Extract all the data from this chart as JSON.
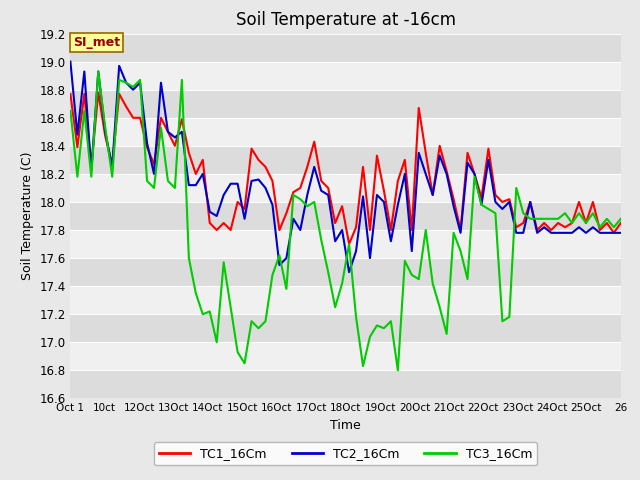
{
  "title": "Soil Temperature at -16cm",
  "xlabel": "Time",
  "ylabel": "Soil Temperature (C)",
  "fig_bg_color": "#e8e8e8",
  "plot_bg_color": "#e8e8e8",
  "ylim": [
    16.6,
    19.2
  ],
  "yticks": [
    16.6,
    16.8,
    17.0,
    17.2,
    17.4,
    17.6,
    17.8,
    18.0,
    18.2,
    18.4,
    18.6,
    18.8,
    19.0,
    19.2
  ],
  "xtick_labels": [
    "Oct 1",
    "10ct",
    "12Oct",
    "13Oct",
    "14Oct",
    "15Oct",
    "16Oct",
    "17Oct",
    "18Oct",
    "19Oct",
    "20Oct",
    "21Oct",
    "22Oct",
    "23Oct",
    "24Oct",
    "25Oct",
    "26"
  ],
  "legend_labels": [
    "TC1_16Cm",
    "TC2_16Cm",
    "TC3_16Cm"
  ],
  "legend_colors": [
    "#ff0000",
    "#0000cc",
    "#00cc00"
  ],
  "annotation_text": "SI_met",
  "annotation_bg": "#ffff99",
  "annotation_border": "#996600",
  "annotation_text_color": "#990000",
  "line_width": 1.5,
  "band_colors": [
    "#dcdcdc",
    "#f0f0f0"
  ],
  "series": {
    "TC1": [
      18.77,
      18.39,
      18.77,
      18.25,
      18.78,
      18.47,
      18.26,
      18.77,
      18.68,
      18.6,
      18.6,
      18.39,
      18.27,
      18.6,
      18.5,
      18.4,
      18.59,
      18.35,
      18.2,
      18.3,
      17.85,
      17.8,
      17.85,
      17.8,
      18.0,
      17.95,
      18.38,
      18.3,
      18.25,
      18.15,
      17.8,
      17.92,
      18.07,
      18.1,
      18.25,
      18.43,
      18.15,
      18.1,
      17.85,
      17.97,
      17.7,
      17.82,
      18.25,
      17.8,
      18.33,
      18.08,
      17.8,
      18.15,
      18.3,
      17.8,
      18.67,
      18.35,
      18.05,
      18.4,
      18.22,
      18.02,
      17.8,
      18.35,
      18.2,
      18.03,
      18.38,
      18.05,
      18.0,
      18.02,
      17.82,
      17.85,
      18.0,
      17.8,
      17.85,
      17.8,
      17.85,
      17.82,
      17.85,
      18.0,
      17.85,
      18.0,
      17.8,
      17.85,
      17.78,
      17.85
    ],
    "TC2": [
      19.0,
      18.48,
      18.93,
      18.22,
      18.93,
      18.5,
      18.25,
      18.97,
      18.85,
      18.8,
      18.85,
      18.42,
      18.2,
      18.85,
      18.5,
      18.46,
      18.5,
      18.12,
      18.12,
      18.2,
      17.93,
      17.9,
      18.05,
      18.13,
      18.13,
      17.88,
      18.15,
      18.16,
      18.1,
      17.98,
      17.55,
      17.6,
      17.88,
      17.8,
      18.05,
      18.25,
      18.08,
      18.05,
      17.72,
      17.8,
      17.5,
      17.65,
      18.04,
      17.6,
      18.05,
      18.0,
      17.72,
      17.98,
      18.2,
      17.65,
      18.35,
      18.2,
      18.05,
      18.33,
      18.2,
      17.97,
      17.78,
      18.28,
      18.2,
      17.98,
      18.3,
      18.0,
      17.95,
      18.0,
      17.78,
      17.78,
      18.0,
      17.78,
      17.82,
      17.78,
      17.78,
      17.78,
      17.78,
      17.82,
      17.78,
      17.82,
      17.78,
      17.78,
      17.78,
      17.78
    ],
    "TC3": [
      18.65,
      18.18,
      18.65,
      18.18,
      18.93,
      18.53,
      18.18,
      18.87,
      18.85,
      18.82,
      18.87,
      18.15,
      18.1,
      18.53,
      18.15,
      18.1,
      18.87,
      17.6,
      17.35,
      17.2,
      17.22,
      17.0,
      17.57,
      17.25,
      16.93,
      16.85,
      17.15,
      17.1,
      17.15,
      17.48,
      17.62,
      17.38,
      18.05,
      18.02,
      17.97,
      18.0,
      17.73,
      17.5,
      17.25,
      17.42,
      17.7,
      17.18,
      16.83,
      17.04,
      17.12,
      17.1,
      17.15,
      16.8,
      17.58,
      17.48,
      17.45,
      17.8,
      17.42,
      17.25,
      17.06,
      17.78,
      17.65,
      17.45,
      18.18,
      17.98,
      17.95,
      17.92,
      17.15,
      17.18,
      18.1,
      17.92,
      17.88,
      17.88,
      17.88,
      17.88,
      17.88,
      17.92,
      17.85,
      17.92,
      17.85,
      17.92,
      17.82,
      17.88,
      17.82,
      17.88
    ]
  }
}
